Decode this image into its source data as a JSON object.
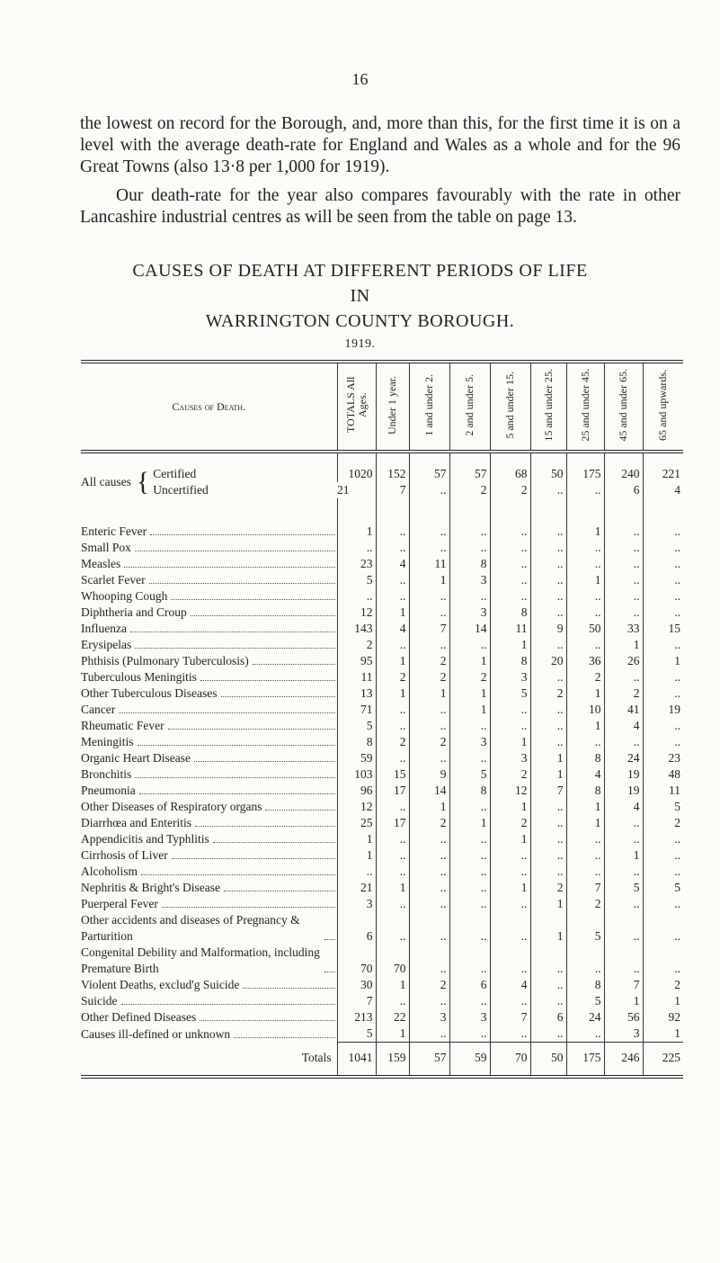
{
  "page_number": "16",
  "paragraphs": [
    "the lowest on record for the Borough, and, more than this, for the first time it is on a level with the average death-rate for England and Wales as a whole and for the 96 Great Towns (also 13·8 per 1,000 for 1919).",
    "Our death-rate for the year also compares favourably with the rate in other Lancashire industrial centres as will be seen from the table on page 13."
  ],
  "title": [
    "CAUSES OF DEATH AT DIFFERENT PERIODS OF LIFE",
    "IN",
    "WARRINGTON COUNTY BOROUGH.",
    "1919."
  ],
  "table": {
    "headers": [
      "Causes of Death.",
      "TOTALS All Ages.",
      "Under 1 year.",
      "1 and under 2.",
      "2 and under 5.",
      "5 and under 15.",
      "15 and under 25.",
      "25 and under 45.",
      "45 and under 65.",
      "65 and upwards."
    ],
    "all_causes": {
      "label": "All causes",
      "rows": [
        {
          "label": "Certified",
          "cells": [
            "1020",
            "152",
            "57",
            "57",
            "68",
            "50",
            "175",
            "240",
            "221"
          ]
        },
        {
          "label": "Uncertified",
          "cells": [
            "21",
            "7",
            "..",
            "2",
            "2",
            "..",
            "..",
            "6",
            "4"
          ]
        }
      ]
    },
    "rows": [
      {
        "label": "Enteric Fever",
        "cells": [
          "1",
          "..",
          "..",
          "..",
          "..",
          "..",
          "1",
          "..",
          ".."
        ]
      },
      {
        "label": "Small Pox",
        "cells": [
          "..",
          "..",
          "..",
          "..",
          "..",
          "..",
          "..",
          "..",
          ".."
        ]
      },
      {
        "label": "Measles",
        "cells": [
          "23",
          "4",
          "11",
          "8",
          "..",
          "..",
          "..",
          "..",
          ".."
        ]
      },
      {
        "label": "Scarlet Fever",
        "cells": [
          "5",
          "..",
          "1",
          "3",
          "..",
          "..",
          "1",
          "..",
          ".."
        ]
      },
      {
        "label": "Whooping Cough",
        "cells": [
          "..",
          "..",
          "..",
          "..",
          "..",
          "..",
          "..",
          "..",
          ".."
        ]
      },
      {
        "label": "Diphtheria and Croup",
        "cells": [
          "12",
          "1",
          "..",
          "3",
          "8",
          "..",
          "..",
          "..",
          ".."
        ]
      },
      {
        "label": "Influenza",
        "cells": [
          "143",
          "4",
          "7",
          "14",
          "11",
          "9",
          "50",
          "33",
          "15"
        ]
      },
      {
        "label": "Erysipelas",
        "cells": [
          "2",
          "..",
          "..",
          "..",
          "1",
          "..",
          "..",
          "1",
          ".."
        ]
      },
      {
        "label": "Phthisis (Pulmonary Tuberculosis)",
        "cells": [
          "95",
          "1",
          "2",
          "1",
          "8",
          "20",
          "36",
          "26",
          "1"
        ]
      },
      {
        "label": "Tuberculous Meningitis",
        "cells": [
          "11",
          "2",
          "2",
          "2",
          "3",
          "..",
          "2",
          "..",
          ".."
        ]
      },
      {
        "label": "Other Tuberculous Diseases",
        "cells": [
          "13",
          "1",
          "1",
          "1",
          "5",
          "2",
          "1",
          "2",
          ".."
        ]
      },
      {
        "label": "Cancer",
        "cells": [
          "71",
          "..",
          "..",
          "1",
          "..",
          "..",
          "10",
          "41",
          "19"
        ]
      },
      {
        "label": "Rheumatic Fever",
        "cells": [
          "5",
          "..",
          "..",
          "..",
          "..",
          "..",
          "1",
          "4",
          ".."
        ]
      },
      {
        "label": "Meningitis",
        "cells": [
          "8",
          "2",
          "2",
          "3",
          "1",
          "..",
          "..",
          "..",
          ".."
        ]
      },
      {
        "label": "Organic Heart Disease",
        "cells": [
          "59",
          "..",
          "..",
          "..",
          "3",
          "1",
          "8",
          "24",
          "23"
        ]
      },
      {
        "label": "Bronchitis",
        "cells": [
          "103",
          "15",
          "9",
          "5",
          "2",
          "1",
          "4",
          "19",
          "48"
        ]
      },
      {
        "label": "Pneumonia",
        "cells": [
          "96",
          "17",
          "14",
          "8",
          "12",
          "7",
          "8",
          "19",
          "11"
        ]
      },
      {
        "label": "Other Diseases of Respiratory organs",
        "cells": [
          "12",
          "..",
          "1",
          "..",
          "1",
          "..",
          "1",
          "4",
          "5"
        ]
      },
      {
        "label": "Diarrhœa and Enteritis",
        "cells": [
          "25",
          "17",
          "2",
          "1",
          "2",
          "..",
          "1",
          "..",
          "2"
        ]
      },
      {
        "label": "Appendicitis and Typhlitis",
        "cells": [
          "1",
          "..",
          "..",
          "..",
          "1",
          "..",
          "..",
          "..",
          ".."
        ]
      },
      {
        "label": "Cirrhosis of Liver",
        "cells": [
          "1",
          "..",
          "..",
          "..",
          "..",
          "..",
          "..",
          "1",
          ".."
        ]
      },
      {
        "label": "Alcoholism",
        "cells": [
          "..",
          "..",
          "..",
          "..",
          "..",
          "..",
          "..",
          "..",
          ".."
        ]
      },
      {
        "label": "Nephritis & Bright's Disease",
        "cells": [
          "21",
          "1",
          "..",
          "..",
          "1",
          "2",
          "7",
          "5",
          "5"
        ]
      },
      {
        "label": "Puerperal Fever",
        "cells": [
          "3",
          "..",
          "..",
          "..",
          "..",
          "1",
          "2",
          "..",
          ".."
        ]
      },
      {
        "label": "Other accidents and diseases of Pregnancy & Parturition",
        "cells": [
          "6",
          "..",
          "..",
          "..",
          "..",
          "1",
          "5",
          "..",
          ".."
        ]
      },
      {
        "label": "Congenital Debility and Malformation, including Premature Birth",
        "cells": [
          "70",
          "70",
          "..",
          "..",
          "..",
          "..",
          "..",
          "..",
          ".."
        ]
      },
      {
        "label": "Violent Deaths, exclud'g Suicide",
        "cells": [
          "30",
          "1",
          "2",
          "6",
          "4",
          "..",
          "8",
          "7",
          "2"
        ]
      },
      {
        "label": "Suicide",
        "cells": [
          "7",
          "..",
          "..",
          "..",
          "..",
          "..",
          "5",
          "1",
          "1"
        ]
      },
      {
        "label": "Other Defined Diseases",
        "cells": [
          "213",
          "22",
          "3",
          "3",
          "7",
          "6",
          "24",
          "56",
          "92"
        ]
      },
      {
        "label": "Causes ill-defined or unknown",
        "cells": [
          "5",
          "1",
          "..",
          "..",
          "..",
          "..",
          "..",
          "3",
          "1"
        ]
      }
    ],
    "totals": {
      "label": "Totals",
      "cells": [
        "1041",
        "159",
        "57",
        "59",
        "70",
        "50",
        "175",
        "246",
        "225"
      ]
    }
  }
}
